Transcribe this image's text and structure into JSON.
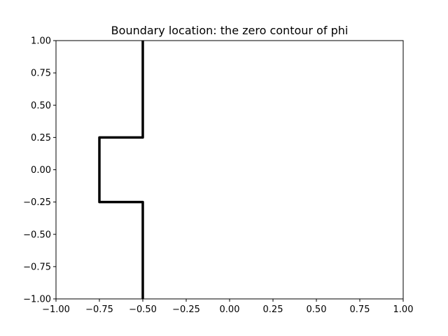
{
  "chart_data": {
    "type": "line",
    "title": "Boundary location: the zero contour of phi",
    "xlabel": "",
    "ylabel": "",
    "xlim": [
      -1.0,
      1.0
    ],
    "ylim": [
      -1.0,
      1.0
    ],
    "grid": false,
    "x_ticks": [
      -1.0,
      -0.75,
      -0.5,
      -0.25,
      0.0,
      0.25,
      0.5,
      0.75,
      1.0
    ],
    "x_tick_labels": [
      "−1.00",
      "−0.75",
      "−0.50",
      "−0.25",
      "0.00",
      "0.25",
      "0.50",
      "0.75",
      "1.00"
    ],
    "y_ticks": [
      -1.0,
      -0.75,
      -0.5,
      -0.25,
      0.0,
      0.25,
      0.5,
      0.75,
      1.0
    ],
    "y_tick_labels": [
      "−1.00",
      "−0.75",
      "−0.50",
      "−0.25",
      "0.00",
      "0.25",
      "0.50",
      "0.75",
      "1.00"
    ],
    "series": [
      {
        "color": "#000000",
        "x": [
          -0.5,
          -0.5,
          -0.75,
          -0.75,
          -0.5,
          -0.5
        ],
        "y": [
          1.0,
          0.25,
          0.25,
          -0.25,
          -0.25,
          -1.0
        ]
      }
    ]
  }
}
